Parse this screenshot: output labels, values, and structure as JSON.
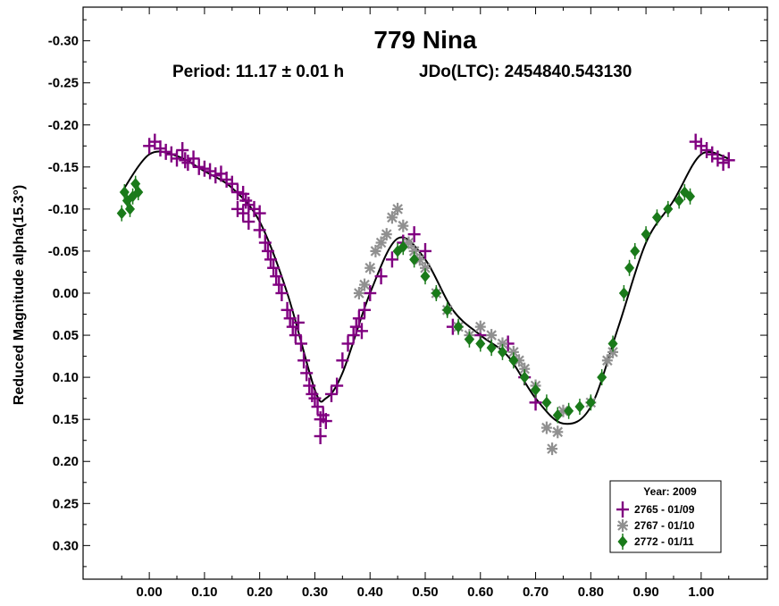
{
  "chart_data": {
    "type": "scatter",
    "title": "779 Nina",
    "subtitle": {
      "period": "Period: 11.17 ± 0.01 h",
      "epoch": "JDo(LTC): 2454840.543130"
    },
    "xlabel": "",
    "ylabel": "Reduced Magnitude alpha(15.3°)",
    "xlim": [
      -0.12,
      1.12
    ],
    "ylim": [
      -0.34,
      0.34
    ],
    "y_inverted": true,
    "xticks": [
      0.0,
      0.1,
      0.2,
      0.3,
      0.4,
      0.5,
      0.6,
      0.7,
      0.8,
      0.9,
      1.0
    ],
    "xtick_labels": [
      "0.00",
      "0.10",
      "0.20",
      "0.30",
      "0.40",
      "0.50",
      "0.60",
      "0.70",
      "0.80",
      "0.90",
      "1.00"
    ],
    "yticks": [
      -0.3,
      -0.25,
      -0.2,
      -0.15,
      -0.1,
      -0.05,
      0.0,
      0.05,
      0.1,
      0.15,
      0.2,
      0.25,
      0.3
    ],
    "ytick_labels": [
      "-0.30",
      "-0.25",
      "-0.20",
      "-0.15",
      "-0.10",
      "-0.05",
      "0.00",
      "0.05",
      "0.10",
      "0.15",
      "0.20",
      "0.25",
      "0.30"
    ],
    "legend": {
      "title": "Year: 2009",
      "position": "bottom-right"
    },
    "series": [
      {
        "name": "2765 - 01/09",
        "marker": "plus",
        "color": "#800080",
        "points": [
          [
            0.0,
            -0.175
          ],
          [
            0.01,
            -0.18
          ],
          [
            0.02,
            -0.172
          ],
          [
            0.03,
            -0.168
          ],
          [
            0.04,
            -0.165
          ],
          [
            0.05,
            -0.16
          ],
          [
            0.06,
            -0.17
          ],
          [
            0.065,
            -0.158
          ],
          [
            0.07,
            -0.155
          ],
          [
            0.08,
            -0.16
          ],
          [
            0.09,
            -0.15
          ],
          [
            0.1,
            -0.148
          ],
          [
            0.11,
            -0.145
          ],
          [
            0.12,
            -0.14
          ],
          [
            0.13,
            -0.142
          ],
          [
            0.14,
            -0.135
          ],
          [
            0.15,
            -0.13
          ],
          [
            0.16,
            -0.12
          ],
          [
            0.17,
            -0.118
          ],
          [
            0.175,
            -0.11
          ],
          [
            0.18,
            -0.105
          ],
          [
            0.19,
            -0.1
          ],
          [
            0.2,
            -0.095
          ],
          [
            0.17,
            -0.095
          ],
          [
            0.16,
            -0.1
          ],
          [
            0.18,
            -0.085
          ],
          [
            0.2,
            -0.075
          ],
          [
            0.21,
            -0.06
          ],
          [
            0.215,
            -0.05
          ],
          [
            0.22,
            -0.04
          ],
          [
            0.225,
            -0.03
          ],
          [
            0.23,
            -0.02
          ],
          [
            0.235,
            -0.01
          ],
          [
            0.24,
            0.0
          ],
          [
            0.25,
            0.02
          ],
          [
            0.255,
            0.03
          ],
          [
            0.26,
            0.04
          ],
          [
            0.265,
            0.05
          ],
          [
            0.27,
            0.035
          ],
          [
            0.275,
            0.06
          ],
          [
            0.28,
            0.08
          ],
          [
            0.285,
            0.095
          ],
          [
            0.29,
            0.11
          ],
          [
            0.295,
            0.12
          ],
          [
            0.3,
            0.125
          ],
          [
            0.305,
            0.135
          ],
          [
            0.31,
            0.15
          ],
          [
            0.31,
            0.17
          ],
          [
            0.315,
            0.145
          ],
          [
            0.32,
            0.152
          ],
          [
            0.33,
            0.12
          ],
          [
            0.34,
            0.11
          ],
          [
            0.35,
            0.08
          ],
          [
            0.36,
            0.06
          ],
          [
            0.37,
            0.05
          ],
          [
            0.375,
            0.04
          ],
          [
            0.38,
            0.03
          ],
          [
            0.385,
            0.045
          ],
          [
            0.39,
            0.02
          ],
          [
            0.4,
            0.0
          ],
          [
            0.42,
            -0.02
          ],
          [
            0.44,
            -0.04
          ],
          [
            0.46,
            -0.06
          ],
          [
            0.48,
            -0.07
          ],
          [
            0.5,
            -0.05
          ],
          [
            0.55,
            0.04
          ],
          [
            0.6,
            0.05
          ],
          [
            0.65,
            0.06
          ],
          [
            0.68,
            0.1
          ],
          [
            0.7,
            0.13
          ],
          [
            0.99,
            -0.18
          ],
          [
            1.0,
            -0.175
          ],
          [
            1.01,
            -0.17
          ],
          [
            1.02,
            -0.165
          ],
          [
            1.03,
            -0.16
          ],
          [
            1.04,
            -0.155
          ],
          [
            1.05,
            -0.158
          ]
        ]
      },
      {
        "name": "2767 - 01/10",
        "marker": "asterisk",
        "color": "#909090",
        "points": [
          [
            0.38,
            0.0
          ],
          [
            0.39,
            -0.01
          ],
          [
            0.4,
            -0.03
          ],
          [
            0.41,
            -0.05
          ],
          [
            0.42,
            -0.06
          ],
          [
            0.43,
            -0.07
          ],
          [
            0.44,
            -0.09
          ],
          [
            0.45,
            -0.1
          ],
          [
            0.46,
            -0.08
          ],
          [
            0.47,
            -0.06
          ],
          [
            0.48,
            -0.05
          ],
          [
            0.49,
            -0.04
          ],
          [
            0.5,
            -0.03
          ],
          [
            0.52,
            0.0
          ],
          [
            0.54,
            0.02
          ],
          [
            0.56,
            0.04
          ],
          [
            0.58,
            0.05
          ],
          [
            0.6,
            0.04
          ],
          [
            0.62,
            0.05
          ],
          [
            0.64,
            0.06
          ],
          [
            0.66,
            0.07
          ],
          [
            0.67,
            0.08
          ],
          [
            0.68,
            0.09
          ],
          [
            0.7,
            0.11
          ],
          [
            0.72,
            0.16
          ],
          [
            0.73,
            0.185
          ],
          [
            0.74,
            0.165
          ],
          [
            0.75,
            0.14
          ],
          [
            0.8,
            0.13
          ],
          [
            0.83,
            0.08
          ],
          [
            0.84,
            0.07
          ]
        ]
      },
      {
        "name": "2772 - 01/11",
        "marker": "diamond",
        "color": "#1a7a1a",
        "points": [
          [
            -0.05,
            -0.095
          ],
          [
            -0.045,
            -0.12
          ],
          [
            -0.04,
            -0.11
          ],
          [
            -0.035,
            -0.1
          ],
          [
            -0.03,
            -0.115
          ],
          [
            -0.025,
            -0.13
          ],
          [
            -0.02,
            -0.12
          ],
          [
            0.45,
            -0.05
          ],
          [
            0.46,
            -0.055
          ],
          [
            0.48,
            -0.04
          ],
          [
            0.5,
            -0.02
          ],
          [
            0.52,
            0.0
          ],
          [
            0.54,
            0.02
          ],
          [
            0.56,
            0.04
          ],
          [
            0.58,
            0.055
          ],
          [
            0.6,
            0.06
          ],
          [
            0.62,
            0.065
          ],
          [
            0.64,
            0.07
          ],
          [
            0.66,
            0.08
          ],
          [
            0.68,
            0.1
          ],
          [
            0.7,
            0.115
          ],
          [
            0.72,
            0.13
          ],
          [
            0.74,
            0.145
          ],
          [
            0.76,
            0.14
          ],
          [
            0.78,
            0.135
          ],
          [
            0.8,
            0.13
          ],
          [
            0.82,
            0.1
          ],
          [
            0.84,
            0.06
          ],
          [
            0.86,
            0.0
          ],
          [
            0.87,
            -0.03
          ],
          [
            0.88,
            -0.05
          ],
          [
            0.9,
            -0.07
          ],
          [
            0.92,
            -0.09
          ],
          [
            0.94,
            -0.1
          ],
          [
            0.96,
            -0.11
          ],
          [
            0.97,
            -0.12
          ],
          [
            0.98,
            -0.115
          ]
        ]
      }
    ],
    "fit_curve": [
      [
        -0.05,
        -0.12
      ],
      [
        0.0,
        -0.165
      ],
      [
        0.05,
        -0.163
      ],
      [
        0.1,
        -0.145
      ],
      [
        0.15,
        -0.125
      ],
      [
        0.2,
        -0.085
      ],
      [
        0.25,
        0.0
      ],
      [
        0.3,
        0.115
      ],
      [
        0.32,
        0.125
      ],
      [
        0.35,
        0.095
      ],
      [
        0.4,
        0.0
      ],
      [
        0.45,
        -0.065
      ],
      [
        0.5,
        -0.04
      ],
      [
        0.55,
        0.02
      ],
      [
        0.6,
        0.05
      ],
      [
        0.65,
        0.075
      ],
      [
        0.7,
        0.125
      ],
      [
        0.75,
        0.155
      ],
      [
        0.8,
        0.135
      ],
      [
        0.85,
        0.04
      ],
      [
        0.9,
        -0.06
      ],
      [
        0.95,
        -0.11
      ],
      [
        1.0,
        -0.165
      ],
      [
        1.05,
        -0.16
      ]
    ]
  }
}
